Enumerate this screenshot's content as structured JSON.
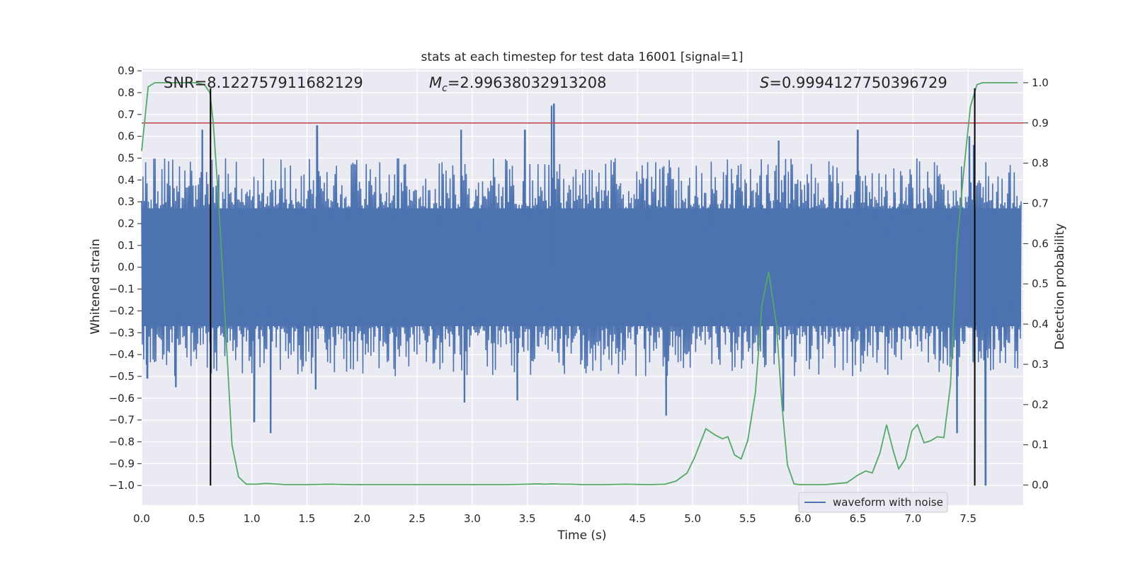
{
  "chart_data": {
    "type": "line",
    "title": "stats at each timestep for test data 16001 [signal=1]",
    "xlabel": "Time (s)",
    "ylabel": "Whitened strain",
    "y2label": "Detection probability",
    "xlim": [
      0.0,
      8.0
    ],
    "ylim": [
      -1.09,
      0.91
    ],
    "y2lim": [
      -0.05,
      1.035
    ],
    "xticks": [
      "0.0",
      "0.5",
      "1.0",
      "1.5",
      "2.0",
      "2.5",
      "3.0",
      "3.5",
      "4.0",
      "4.5",
      "5.0",
      "5.5",
      "6.0",
      "6.5",
      "7.0",
      "7.5"
    ],
    "yticks": [
      "0.9",
      "0.8",
      "0.7",
      "0.6",
      "0.5",
      "0.4",
      "0.3",
      "0.2",
      "0.1",
      "0.0",
      "-0.1",
      "-0.2",
      "-0.3",
      "-0.4",
      "-0.5",
      "-0.6",
      "-0.7",
      "-0.8",
      "-0.9",
      "-1.0"
    ],
    "y2ticks": [
      "1.0",
      "0.9",
      "0.8",
      "0.7",
      "0.6",
      "0.5",
      "0.4",
      "0.3",
      "0.2",
      "0.1",
      "0.0"
    ],
    "annotations": {
      "snr": "SNR=8.122757911682129",
      "mc": "=2.99638032913208",
      "mc_symbol": "M",
      "mc_sub": "c",
      "s": "=0.9994127750396729",
      "s_symbol": "S"
    },
    "legend": {
      "label": "waveform with noise",
      "loc": "lower right"
    },
    "threshold": {
      "y2": 0.9,
      "color": "#c44e52"
    },
    "vlines": {
      "x": [
        0.625,
        7.56
      ],
      "y_range": [
        -1.0,
        0.82
      ],
      "color": "#000000"
    },
    "waveform": {
      "name": "waveform with noise",
      "color": "#4c72b0",
      "x_range": [
        0.0,
        7.98
      ],
      "band_limit": 0.27,
      "typical_amplitude": 0.38,
      "spikes": [
        {
          "x": 0.05,
          "y": -0.51
        },
        {
          "x": 0.31,
          "y": -0.55
        },
        {
          "x": 0.55,
          "y": 0.63
        },
        {
          "x": 1.02,
          "y": -0.71
        },
        {
          "x": 1.17,
          "y": -0.76
        },
        {
          "x": 1.59,
          "y": 0.65
        },
        {
          "x": 1.58,
          "y": -0.56
        },
        {
          "x": 2.9,
          "y": 0.63
        },
        {
          "x": 2.93,
          "y": -0.62
        },
        {
          "x": 3.48,
          "y": 0.63
        },
        {
          "x": 3.41,
          "y": -0.61
        },
        {
          "x": 3.72,
          "y": 0.74
        },
        {
          "x": 3.74,
          "y": 0.75
        },
        {
          "x": 4.76,
          "y": -0.68
        },
        {
          "x": 5.78,
          "y": 0.58
        },
        {
          "x": 5.82,
          "y": -0.66
        },
        {
          "x": 6.5,
          "y": 0.63
        },
        {
          "x": 7.51,
          "y": 0.6
        },
        {
          "x": 7.4,
          "y": -0.76
        },
        {
          "x": 7.66,
          "y": -1.0
        },
        {
          "x": 7.55,
          "y": 0.56
        }
      ]
    },
    "probability": {
      "name": "Detection probability",
      "color": "#55a868",
      "x": [
        0.0,
        0.06,
        0.12,
        0.2,
        0.35,
        0.5,
        0.57,
        0.62,
        0.65,
        0.7,
        0.76,
        0.82,
        0.88,
        0.95,
        1.05,
        1.12,
        1.2,
        1.3,
        1.5,
        1.7,
        1.9,
        2.1,
        2.3,
        2.5,
        2.7,
        2.9,
        3.1,
        3.3,
        3.5,
        3.6,
        3.66,
        3.74,
        3.8,
        3.9,
        4.0,
        4.2,
        4.4,
        4.6,
        4.75,
        4.85,
        4.95,
        5.02,
        5.12,
        5.2,
        5.27,
        5.32,
        5.38,
        5.44,
        5.5,
        5.57,
        5.63,
        5.69,
        5.76,
        5.81,
        5.86,
        5.92,
        5.97,
        6.03,
        6.2,
        6.4,
        6.5,
        6.57,
        6.63,
        6.7,
        6.76,
        6.82,
        6.87,
        6.93,
        6.99,
        7.04,
        7.1,
        7.16,
        7.22,
        7.28,
        7.34,
        7.4,
        7.46,
        7.52,
        7.58,
        7.63,
        7.68,
        7.73,
        7.8,
        7.95
      ],
      "y": [
        0.83,
        0.99,
        1.0,
        1.0,
        1.0,
        1.0,
        0.995,
        0.975,
        0.9,
        0.7,
        0.4,
        0.1,
        0.02,
        0.002,
        0.002,
        0.004,
        0.003,
        0.001,
        0.001,
        0.002,
        0.001,
        0.001,
        0.001,
        0.001,
        0.001,
        0.001,
        0.001,
        0.001,
        0.002,
        0.003,
        0.002,
        0.003,
        0.002,
        0.002,
        0.001,
        0.001,
        0.002,
        0.001,
        0.002,
        0.01,
        0.03,
        0.07,
        0.14,
        0.125,
        0.115,
        0.12,
        0.075,
        0.065,
        0.11,
        0.23,
        0.45,
        0.53,
        0.4,
        0.2,
        0.05,
        0.003,
        0.001,
        0.001,
        0.001,
        0.006,
        0.025,
        0.035,
        0.03,
        0.08,
        0.15,
        0.085,
        0.04,
        0.065,
        0.135,
        0.15,
        0.105,
        0.11,
        0.12,
        0.118,
        0.25,
        0.6,
        0.78,
        0.94,
        0.995,
        1.0,
        1.0,
        1.0,
        1.0,
        1.0
      ]
    }
  }
}
